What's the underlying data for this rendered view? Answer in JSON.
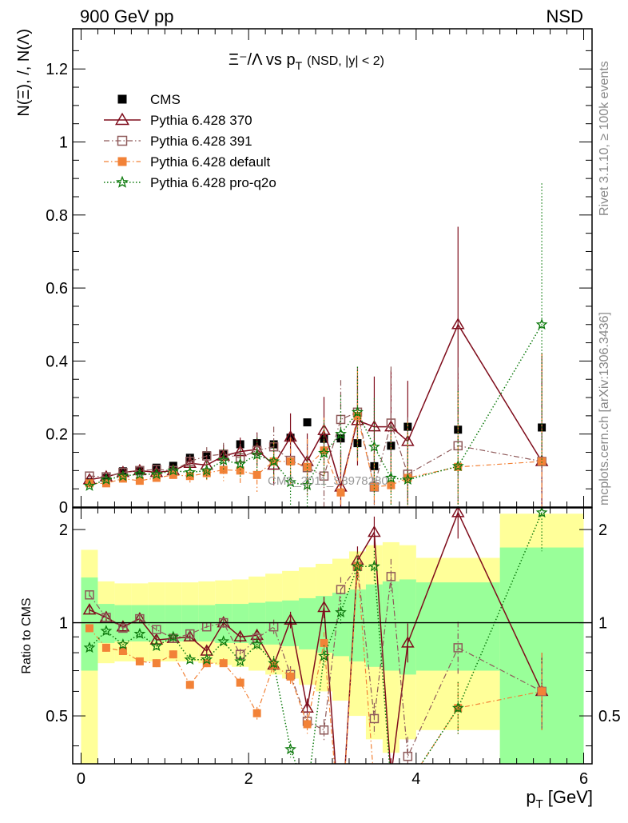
{
  "header": {
    "left": "900 GeV pp",
    "right": "NSD"
  },
  "side_texts": {
    "rivet": "Rivet 3.1.10, ≥ 100k events",
    "mcplots": "mcplots.cern.ch [arXiv:1306.3436]"
  },
  "chart_data": {
    "type": "scatter",
    "title_main": "Ξ⁻/Λ  vs p",
    "title_sub": "T",
    "title_tail": "(NSD, |y| < 2)",
    "ylabel": "N(Ξ), /, N(Λ)",
    "ratio_ylabel": "Ratio to CMS",
    "xlabel": "p",
    "xlabel_sub": "T",
    "xlabel_unit": "[GeV]",
    "watermark": "CMS_2011_S8978280",
    "xlim": [
      -0.1,
      6.1
    ],
    "ylim": [
      0,
      1.31
    ],
    "ratio_ylim": [
      0.35,
      2.35
    ],
    "x_ticks": [
      "0",
      "2",
      "4",
      "6"
    ],
    "y_ticks": [
      "0",
      "0.2",
      "0.4",
      "0.6",
      "0.8",
      "1",
      "1.2"
    ],
    "ratio_ticks": [
      "0.5",
      "1",
      "2"
    ],
    "legend_position": "top-left",
    "band_edges": [
      0,
      0.2,
      0.4,
      0.6,
      0.8,
      1.0,
      1.2,
      1.4,
      1.6,
      1.8,
      2.0,
      2.2,
      2.4,
      2.6,
      2.8,
      3.0,
      3.2,
      3.4,
      3.6,
      3.8,
      4.0,
      5.0,
      6.0
    ],
    "band_inner": [
      [
        0.7,
        1.4
      ],
      [
        0.86,
        1.15
      ],
      [
        0.87,
        1.14
      ],
      [
        0.87,
        1.14
      ],
      [
        0.87,
        1.14
      ],
      [
        0.87,
        1.14
      ],
      [
        0.87,
        1.14
      ],
      [
        0.87,
        1.14
      ],
      [
        0.86,
        1.15
      ],
      [
        0.86,
        1.15
      ],
      [
        0.85,
        1.16
      ],
      [
        0.85,
        1.17
      ],
      [
        0.84,
        1.18
      ],
      [
        0.82,
        1.2
      ],
      [
        0.8,
        1.22
      ],
      [
        0.78,
        1.25
      ],
      [
        0.75,
        1.28
      ],
      [
        0.72,
        1.33
      ],
      [
        0.7,
        1.36
      ],
      [
        0.68,
        1.38
      ],
      [
        0.7,
        1.35
      ],
      [
        0.35,
        1.75
      ]
    ],
    "band_outer": [
      [
        0.35,
        1.72
      ],
      [
        0.74,
        1.36
      ],
      [
        0.75,
        1.34
      ],
      [
        0.75,
        1.34
      ],
      [
        0.75,
        1.35
      ],
      [
        0.75,
        1.35
      ],
      [
        0.75,
        1.35
      ],
      [
        0.74,
        1.36
      ],
      [
        0.73,
        1.37
      ],
      [
        0.72,
        1.38
      ],
      [
        0.7,
        1.41
      ],
      [
        0.68,
        1.44
      ],
      [
        0.66,
        1.47
      ],
      [
        0.63,
        1.51
      ],
      [
        0.6,
        1.55
      ],
      [
        0.56,
        1.61
      ],
      [
        0.5,
        1.7
      ],
      [
        0.42,
        1.78
      ],
      [
        0.38,
        1.82
      ],
      [
        0.42,
        1.78
      ],
      [
        0.45,
        1.62
      ],
      [
        0.35,
        2.25
      ]
    ],
    "series": [
      {
        "name": "CMS",
        "color": "#000000",
        "marker": "filled-square",
        "x": [
          0.1,
          0.3,
          0.5,
          0.7,
          0.9,
          1.1,
          1.3,
          1.5,
          1.7,
          1.9,
          2.1,
          2.3,
          2.5,
          2.7,
          2.9,
          3.1,
          3.3,
          3.5,
          3.7,
          3.9,
          4.5,
          5.5
        ],
        "y": [
          0.068,
          0.08,
          0.098,
          0.098,
          0.108,
          0.113,
          0.135,
          0.142,
          0.145,
          0.172,
          0.175,
          0.172,
          0.19,
          0.232,
          0.187,
          0.188,
          0.175,
          0.112,
          0.168,
          0.22,
          0.212,
          0.218
        ]
      },
      {
        "name": "Pythia 6.428 370",
        "color": "#7f0d1c",
        "marker": "open-triangle",
        "x": [
          0.1,
          0.3,
          0.5,
          0.7,
          0.9,
          1.1,
          1.3,
          1.5,
          1.7,
          1.9,
          2.1,
          2.3,
          2.5,
          2.7,
          2.9,
          3.1,
          3.3,
          3.5,
          3.7,
          3.9,
          4.5,
          5.5
        ],
        "y": [
          0.075,
          0.083,
          0.095,
          0.1,
          0.095,
          0.1,
          0.12,
          0.115,
          0.14,
          0.152,
          0.158,
          0.115,
          0.192,
          0.125,
          0.21,
          0.055,
          0.237,
          0.22,
          0.22,
          0.18,
          0.5,
          0.125
        ],
        "ratio": [
          1.1,
          1.04,
          0.97,
          1.03,
          0.88,
          0.89,
          0.9,
          0.81,
          1.0,
          0.9,
          0.91,
          0.73,
          1.02,
          0.53,
          1.12,
          0.2,
          1.59,
          1.96,
          0.32,
          0.86,
          2.27,
          0.6
        ]
      },
      {
        "name": "Pythia 6.428 391",
        "color": "#8f5a5a",
        "marker": "open-square",
        "x": [
          0.1,
          0.3,
          0.5,
          0.7,
          0.9,
          1.1,
          1.3,
          1.5,
          1.7,
          1.9,
          2.1,
          2.3,
          2.5,
          2.7,
          2.9,
          3.1,
          3.3,
          3.5,
          3.7,
          3.9,
          4.5,
          5.5
        ],
        "y": [
          0.085,
          0.083,
          0.095,
          0.1,
          0.103,
          0.1,
          0.125,
          0.14,
          0.145,
          0.135,
          0.155,
          0.165,
          0.128,
          0.108,
          0.085,
          0.24,
          0.26,
          0.055,
          0.23,
          0.09,
          0.168,
          0.125
        ],
        "ratio": [
          1.23,
          1.04,
          0.96,
          1.03,
          0.95,
          0.89,
          0.92,
          0.97,
          1.0,
          0.79,
          0.89,
          0.97,
          0.68,
          0.48,
          0.45,
          1.28,
          1.52,
          0.49,
          1.41,
          0.37,
          0.83,
          0.6
        ]
      },
      {
        "name": "Pythia 6.428 default",
        "color": "#f28237",
        "marker": "filled-square",
        "x": [
          0.1,
          0.3,
          0.5,
          0.7,
          0.9,
          1.1,
          1.3,
          1.5,
          1.7,
          1.9,
          2.1,
          2.3,
          2.5,
          2.7,
          2.9,
          3.1,
          3.3,
          3.5,
          3.7,
          3.9,
          4.5,
          5.5
        ],
        "y": [
          0.065,
          0.065,
          0.078,
          0.072,
          0.08,
          0.088,
          0.085,
          0.093,
          0.102,
          0.1,
          0.088,
          0.125,
          0.125,
          0.11,
          0.155,
          0.04,
          0.25,
          0.055,
          0.06,
          0.08,
          0.11,
          0.125
        ],
        "ratio": [
          0.96,
          0.83,
          0.81,
          0.75,
          0.74,
          0.79,
          0.63,
          0.74,
          0.74,
          0.64,
          0.51,
          0.73,
          0.67,
          0.47,
          0.86,
          0.2,
          1.52,
          0.3,
          0.3,
          0.3,
          0.53,
          0.6
        ]
      },
      {
        "name": "Pythia 6.428 pro-q2o",
        "color": "#0d7a0d",
        "marker": "open-star",
        "x": [
          0.1,
          0.3,
          0.5,
          0.7,
          0.9,
          1.1,
          1.3,
          1.5,
          1.7,
          1.9,
          2.1,
          2.3,
          2.5,
          2.7,
          2.9,
          3.1,
          3.3,
          3.5,
          3.7,
          3.9,
          4.5,
          5.5
        ],
        "y": [
          0.058,
          0.075,
          0.085,
          0.09,
          0.09,
          0.1,
          0.095,
          0.1,
          0.128,
          0.118,
          0.143,
          0.125,
          0.068,
          0.06,
          0.148,
          0.2,
          0.26,
          0.165,
          0.08,
          0.075,
          0.112,
          0.5
        ],
        "ratio": [
          0.83,
          0.94,
          0.85,
          0.92,
          0.84,
          0.9,
          0.76,
          0.76,
          0.87,
          0.75,
          0.85,
          0.74,
          0.39,
          0.28,
          0.78,
          1.08,
          1.52,
          1.52,
          0.3,
          0.3,
          0.53,
          2.27
        ]
      }
    ]
  }
}
